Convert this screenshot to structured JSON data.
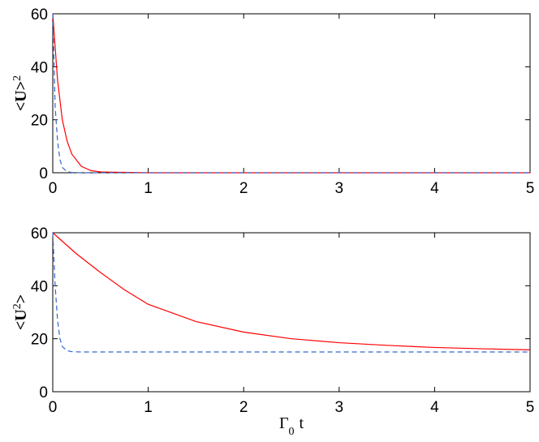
{
  "chart_data": [
    {
      "type": "line",
      "ylabel_parts": [
        "<U>",
        "2"
      ],
      "xlim": [
        0,
        5
      ],
      "ylim": [
        0,
        60
      ],
      "xticks": [
        0,
        1,
        2,
        3,
        4,
        5
      ],
      "yticks": [
        0,
        20,
        40,
        60
      ],
      "series": [
        {
          "color": "#ff0000",
          "dash": "solid",
          "x": [
            0,
            0.05,
            0.1,
            0.15,
            0.2,
            0.3,
            0.4,
            0.5,
            1,
            2,
            3,
            4,
            5
          ],
          "values": [
            60,
            35,
            20,
            12,
            7,
            2.4,
            0.8,
            0.3,
            0,
            0,
            0,
            0,
            0
          ]
        },
        {
          "color": "#3366cc",
          "dash": "dashed",
          "x": [
            0,
            0.025,
            0.05,
            0.075,
            0.1,
            0.15,
            0.2,
            0.3,
            1,
            5
          ],
          "values": [
            60,
            25,
            12,
            5,
            2,
            0.4,
            0.1,
            0,
            0,
            0
          ]
        }
      ]
    },
    {
      "type": "line",
      "ylabel_parts": [
        "<U",
        "2",
        ">"
      ],
      "xlabel_parts": [
        "Γ",
        "0",
        "t"
      ],
      "xlim": [
        0,
        5
      ],
      "ylim": [
        0,
        60
      ],
      "xticks": [
        0,
        1,
        2,
        3,
        4,
        5
      ],
      "yticks": [
        0,
        20,
        40,
        60
      ],
      "series": [
        {
          "color": "#ff0000",
          "dash": "solid",
          "x": [
            0,
            0.25,
            0.5,
            0.75,
            1,
            1.5,
            2,
            2.5,
            3,
            3.5,
            4,
            4.5,
            5
          ],
          "values": [
            60,
            52,
            45,
            38.5,
            33,
            26.5,
            22.5,
            20,
            18.5,
            17.5,
            16.7,
            16.2,
            15.8
          ]
        },
        {
          "color": "#3366cc",
          "dash": "dashed",
          "x": [
            0,
            0.025,
            0.05,
            0.075,
            0.1,
            0.15,
            0.2,
            0.3,
            1,
            5
          ],
          "values": [
            60,
            40,
            27,
            20,
            17,
            15.5,
            15.1,
            15,
            15,
            15
          ]
        }
      ]
    }
  ]
}
